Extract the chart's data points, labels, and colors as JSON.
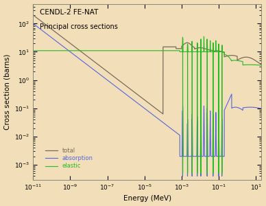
{
  "title_line1": "CENDL-2 FE-NAT",
  "title_line2": "Principal cross sections",
  "xlabel": "Energy (MeV)",
  "ylabel": "Cross section (barns)",
  "background_color": "#f2deb8",
  "plot_bg_color": "#f2deb8",
  "xmin": 1e-11,
  "xmax": 20,
  "ymin": 0.0003,
  "ymax": 500,
  "legend_labels": [
    "total",
    "absorption",
    "elastic"
  ],
  "legend_colors": [
    "#7a6a5a",
    "#4455cc",
    "#22aa22"
  ],
  "total_color": "#7a6a5a",
  "abs_color": "#5566dd",
  "elas_color": "#22bb22"
}
